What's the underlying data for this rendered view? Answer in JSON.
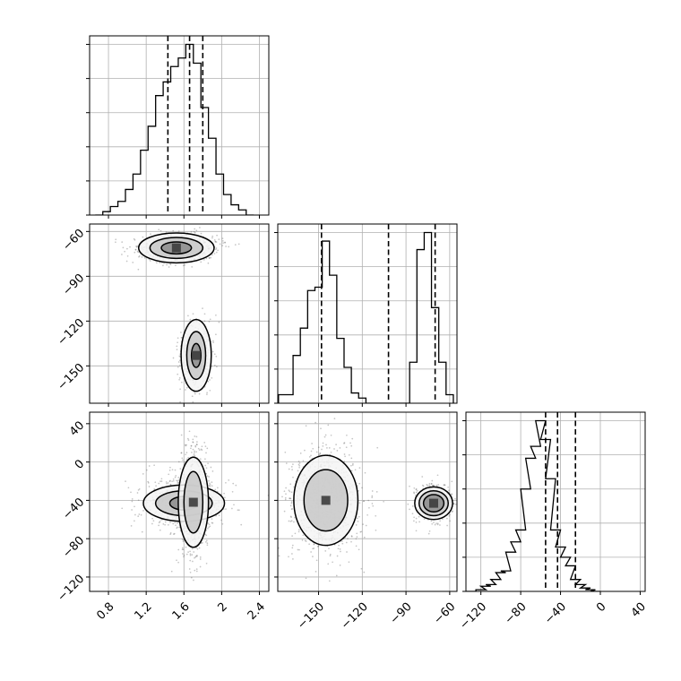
{
  "colors": {
    "axis": "#000000",
    "grid": "#b0b0b0",
    "quantile": "#000000",
    "point": "#555555",
    "level_fills": [
      "#f4f4f4",
      "#c8c8c8",
      "#8c8c8c",
      "#3c3c3c"
    ]
  },
  "chart_data": [
    {
      "type": "histogram",
      "panel": "row0-col0",
      "grid": true,
      "xlim": [
        0.6,
        2.5
      ],
      "xticks": [
        0.8,
        1.2,
        1.6,
        2.0,
        2.4
      ],
      "bins": [
        [
          0.7,
          0.0
        ],
        [
          0.78,
          0.02
        ],
        [
          0.86,
          0.05
        ],
        [
          0.94,
          0.08
        ],
        [
          1.02,
          0.15
        ],
        [
          1.1,
          0.24
        ],
        [
          1.18,
          0.38
        ],
        [
          1.26,
          0.52
        ],
        [
          1.34,
          0.7
        ],
        [
          1.42,
          0.78
        ],
        [
          1.5,
          0.87
        ],
        [
          1.58,
          0.92
        ],
        [
          1.66,
          1.0
        ],
        [
          1.74,
          0.89
        ],
        [
          1.82,
          0.63
        ],
        [
          1.9,
          0.45
        ],
        [
          1.98,
          0.24
        ],
        [
          2.06,
          0.12
        ],
        [
          2.14,
          0.06
        ],
        [
          2.22,
          0.03
        ],
        [
          2.3,
          0.0
        ]
      ],
      "quantiles": [
        1.43,
        1.66,
        1.8
      ]
    },
    {
      "type": "histogram",
      "panel": "row1-col1",
      "grid": true,
      "xlim": [
        -178,
        -55
      ],
      "xticks": [
        -150,
        -120,
        -90,
        -60
      ],
      "bins": [
        [
          -175,
          0.05
        ],
        [
          -170,
          0.05
        ],
        [
          -165,
          0.28
        ],
        [
          -160,
          0.44
        ],
        [
          -155,
          0.66
        ],
        [
          -150,
          0.68
        ],
        [
          -145,
          0.95
        ],
        [
          -140,
          0.75
        ],
        [
          -135,
          0.38
        ],
        [
          -130,
          0.21
        ],
        [
          -125,
          0.06
        ],
        [
          -120,
          0.03
        ],
        [
          -115,
          0.0
        ],
        [
          -110,
          0.0
        ],
        [
          -105,
          0.0
        ],
        [
          -100,
          0.0
        ],
        [
          -95,
          0.0
        ],
        [
          -90,
          0.0
        ],
        [
          -85,
          0.24
        ],
        [
          -80,
          0.9
        ],
        [
          -75,
          1.0
        ],
        [
          -70,
          0.56
        ],
        [
          -65,
          0.24
        ],
        [
          -60,
          0.05
        ]
      ],
      "quantiles": [
        -148,
        -102,
        -70
      ]
    },
    {
      "type": "histogram",
      "panel": "row2-col2",
      "grid": true,
      "xlim": [
        -135,
        45
      ],
      "xticks": [
        -120,
        -80,
        -40,
        0,
        40
      ],
      "bins": [
        [
          -130,
          0.0
        ],
        [
          -120,
          0.01
        ],
        [
          -115,
          0.03
        ],
        [
          -110,
          0.04
        ],
        [
          -105,
          0.07
        ],
        [
          -100,
          0.11
        ],
        [
          -95,
          0.12
        ],
        [
          -90,
          0.23
        ],
        [
          -85,
          0.29
        ],
        [
          -80,
          0.36
        ],
        [
          -75,
          0.6
        ],
        [
          -70,
          0.78
        ],
        [
          -65,
          0.85
        ],
        [
          -60,
          1.0
        ],
        [
          -55,
          0.89
        ],
        [
          -50,
          0.66
        ],
        [
          -45,
          0.36
        ],
        [
          -40,
          0.26
        ],
        [
          -35,
          0.2
        ],
        [
          -30,
          0.15
        ],
        [
          -25,
          0.07
        ],
        [
          -20,
          0.04
        ],
        [
          -15,
          0.02
        ],
        [
          -10,
          0.01
        ],
        [
          -5,
          0.0
        ]
      ],
      "quantiles": [
        -55,
        -43,
        -25
      ]
    },
    {
      "type": "scatter",
      "panel": "row1-col0",
      "grid": true,
      "xlim": [
        0.6,
        2.5
      ],
      "ylim": [
        -175,
        -55
      ],
      "xticks": [
        0.8,
        1.2,
        1.6,
        2.0,
        2.4
      ],
      "yticks": [
        -60,
        -90,
        -120,
        -150
      ],
      "clusters": [
        {
          "center": [
            1.52,
            -71
          ],
          "spread": [
            0.2,
            4.5
          ],
          "count": 900,
          "levels": [
            [
              0.4,
              10
            ],
            [
              0.28,
              7
            ],
            [
              0.16,
              4
            ]
          ]
        },
        {
          "center": [
            1.73,
            -143
          ],
          "spread": [
            0.09,
            11
          ],
          "count": 500,
          "levels": [
            [
              0.16,
              24
            ],
            [
              0.1,
              16
            ],
            [
              0.05,
              8
            ]
          ]
        }
      ]
    },
    {
      "type": "scatter",
      "panel": "row2-col0",
      "grid": true,
      "xlim": [
        0.6,
        2.5
      ],
      "ylim": [
        -135,
        52
      ],
      "xticks": [
        0.8,
        1.2,
        1.6,
        2.0,
        2.4
      ],
      "yticks": [
        40,
        0,
        -40,
        -80,
        -120
      ],
      "clusters": [
        {
          "center": [
            1.6,
            -43
          ],
          "spread": [
            0.22,
            13
          ],
          "count": 700,
          "levels": [
            [
              0.43,
              19
            ],
            [
              0.3,
              13
            ],
            [
              0.15,
              7
            ]
          ]
        },
        {
          "center": [
            1.7,
            -42
          ],
          "spread": [
            0.09,
            32
          ],
          "count": 500,
          "levels": [
            [
              0.16,
              47
            ],
            [
              0.1,
              32
            ]
          ]
        }
      ]
    },
    {
      "type": "scatter",
      "panel": "row2-col1",
      "grid": true,
      "xlim": [
        -178,
        -55
      ],
      "ylim": [
        -135,
        52
      ],
      "xticks": [
        -150,
        -120,
        -90,
        -60
      ],
      "yticks": [
        40,
        0,
        -40,
        -80,
        -120
      ],
      "clusters": [
        {
          "center": [
            -145,
            -40
          ],
          "spread": [
            12,
            27
          ],
          "count": 900,
          "levels": [
            [
              22,
              47
            ],
            [
              15,
              32
            ]
          ]
        },
        {
          "center": [
            -71,
            -43
          ],
          "spread": [
            6.5,
            9
          ],
          "count": 550,
          "levels": [
            [
              13,
              17
            ],
            [
              10,
              13
            ],
            [
              7,
              9
            ]
          ]
        }
      ]
    }
  ]
}
